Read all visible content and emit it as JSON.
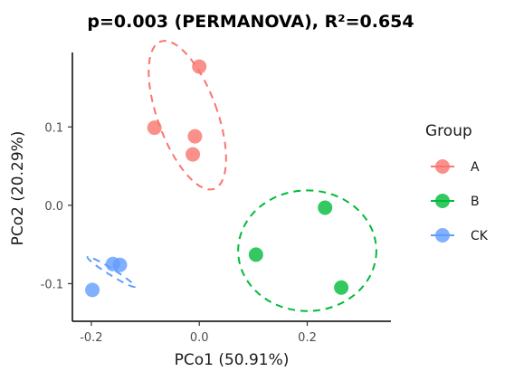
{
  "chart_data": {
    "type": "scatter",
    "title": "p=0.003 (PERMANOVA), R²=0.654",
    "xlabel": "PCo1 (50.91%)",
    "ylabel": "PCo2 (20.29%)",
    "xlim": [
      -0.235,
      0.355
    ],
    "ylim": [
      -0.148,
      0.195
    ],
    "x_ticks": [
      -0.2,
      0.0,
      0.2
    ],
    "x_tick_labels": [
      "-0.2",
      "0.0",
      "0.2"
    ],
    "y_ticks": [
      -0.1,
      0.0,
      0.1
    ],
    "y_tick_labels": [
      "-0.1",
      "0.0",
      "0.1"
    ],
    "grid": false,
    "legend": {
      "title": "Group",
      "position": "right"
    },
    "series": [
      {
        "name": "A",
        "color": "#F8766D",
        "x": [
          0.0,
          -0.083,
          -0.008,
          -0.012
        ],
        "y": [
          0.177,
          0.099,
          0.088,
          0.065
        ],
        "ellipse": {
          "cx": -0.022,
          "cy": 0.115,
          "rx": 0.055,
          "ry": 0.1,
          "rotation_deg": 20
        }
      },
      {
        "name": "B",
        "color": "#00BA38",
        "x": [
          0.233,
          0.105,
          0.263
        ],
        "y": [
          -0.003,
          -0.063,
          -0.105
        ],
        "ellipse": {
          "cx": 0.2,
          "cy": -0.058,
          "rx": 0.128,
          "ry": 0.077,
          "rotation_deg": 0
        }
      },
      {
        "name": "CK",
        "color": "#619CFF",
        "x": [
          -0.16,
          -0.147,
          -0.198
        ],
        "y": [
          -0.075,
          -0.076,
          -0.108
        ],
        "ellipse": {
          "cx": -0.163,
          "cy": -0.085,
          "rx": 0.052,
          "ry": 0.004,
          "rotation_deg": -32
        }
      }
    ]
  }
}
